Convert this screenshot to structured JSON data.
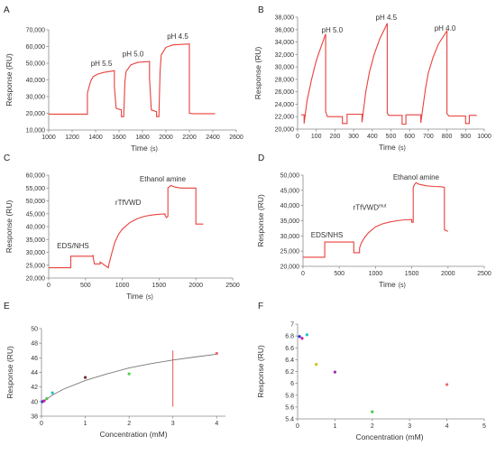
{
  "chart_data": [
    {
      "id": "A",
      "type": "line",
      "panel_label": "A",
      "xlabel": "Time",
      "xunit": "(s)",
      "ylabel": "Response (RU)",
      "xlim": [
        1000,
        2600
      ],
      "ylim": [
        10000,
        70000
      ],
      "xticks": [
        1000,
        1200,
        1400,
        1600,
        1800,
        2000,
        2200,
        2400,
        2600
      ],
      "yticks": [
        10000,
        20000,
        30000,
        40000,
        50000,
        60000,
        70000
      ],
      "xtick_labels": [
        "1000",
        "1200",
        "1400",
        "1600",
        "1800",
        "2000",
        "2200",
        "2400",
        "2600"
      ],
      "ytick_labels": [
        "10,000",
        "20,000",
        "30,000",
        "40,000",
        "50,000",
        "60,000",
        "70,000"
      ],
      "color": "#e8413c",
      "series": [
        {
          "x": [
            1000,
            1330,
            1330,
            1345,
            1360,
            1380,
            1420,
            1470,
            1560,
            1560,
            1575,
            1620,
            1620,
            1640,
            1650,
            1660,
            1700,
            1760,
            1860,
            1860,
            1875,
            1920,
            1920,
            1940,
            1950,
            1960,
            2000,
            2060,
            2200,
            2200,
            2230,
            2420
          ],
          "y": [
            19500,
            19500,
            32000,
            36000,
            39500,
            42000,
            43500,
            44500,
            45500,
            36000,
            23000,
            22000,
            18000,
            18000,
            39000,
            45000,
            49000,
            50500,
            51000,
            41000,
            22000,
            21000,
            18000,
            18000,
            45000,
            55000,
            59500,
            61000,
            61500,
            20000,
            19800,
            19800
          ]
        }
      ],
      "annotations": [
        {
          "text": "pH 5.5",
          "x": 1450,
          "y": 48500
        },
        {
          "text": "pH 5.0",
          "x": 1720,
          "y": 54000
        },
        {
          "text": "pH 4.5",
          "x": 2100,
          "y": 64500
        }
      ]
    },
    {
      "id": "B",
      "type": "line",
      "panel_label": "B",
      "xlabel": "Time",
      "xunit": "(s)",
      "ylabel": "Response (RU)",
      "xlim": [
        0,
        1000
      ],
      "ylim": [
        20000,
        38000
      ],
      "xticks": [
        0,
        100,
        200,
        300,
        400,
        500,
        600,
        700,
        800,
        900,
        1000
      ],
      "yticks": [
        20000,
        22000,
        24000,
        26000,
        28000,
        30000,
        32000,
        34000,
        36000,
        38000
      ],
      "xtick_labels": [
        "0",
        "100",
        "200",
        "300",
        "400",
        "500",
        "600",
        "700",
        "800",
        "900",
        "1000"
      ],
      "ytick_labels": [
        "20,000",
        "22,000",
        "24,000",
        "26,000",
        "28,000",
        "30,000",
        "32,000",
        "34,000",
        "36,000",
        "38,000"
      ],
      "color": "#e8413c",
      "series": [
        {
          "x": [
            20,
            35,
            35,
            50,
            75,
            100,
            125,
            150,
            150,
            160,
            240,
            240,
            265,
            265,
            345,
            345,
            365,
            385,
            410,
            440,
            480,
            480,
            490,
            560,
            560,
            580,
            580,
            660,
            660,
            685,
            700,
            725,
            755,
            800,
            800,
            810,
            900,
            900,
            920,
            920,
            960
          ],
          "y": [
            22300,
            22300,
            20900,
            24500,
            28000,
            31000,
            33200,
            35300,
            22800,
            22000,
            22000,
            20900,
            20900,
            22400,
            22400,
            21100,
            26000,
            29200,
            32000,
            34500,
            37000,
            22500,
            22200,
            22200,
            20800,
            20800,
            22300,
            22300,
            21000,
            26500,
            29000,
            31500,
            33700,
            35800,
            22500,
            22100,
            22100,
            20900,
            20900,
            22200,
            22200
          ]
        }
      ],
      "annotations": [
        {
          "text": "pH 5.0",
          "x": 185,
          "y": 35500
        },
        {
          "text": "pH 4.5",
          "x": 475,
          "y": 37600
        },
        {
          "text": "pH 4.0",
          "x": 790,
          "y": 35800
        }
      ]
    },
    {
      "id": "C",
      "type": "line",
      "panel_label": "C",
      "xlabel": "Time",
      "xunit": "(s)",
      "ylabel": "Response (RU)",
      "xlim": [
        0,
        2500
      ],
      "ylim": [
        20000,
        60000
      ],
      "xticks": [
        0,
        500,
        1000,
        1500,
        2000,
        2500
      ],
      "yticks": [
        20000,
        25000,
        30000,
        35000,
        40000,
        45000,
        50000,
        55000,
        60000
      ],
      "xtick_labels": [
        "0",
        "500",
        "1000",
        "1500",
        "2000",
        "2500"
      ],
      "ytick_labels": [
        "20,000",
        "25,000",
        "30,000",
        "35,000",
        "40,000",
        "45,000",
        "50,000",
        "55,000",
        "60,000"
      ],
      "color": "#e8413c",
      "series": [
        {
          "x": [
            0,
            300,
            300,
            600,
            600,
            620,
            700,
            700,
            810,
            820,
            860,
            900,
            950,
            1000,
            1100,
            1200,
            1300,
            1400,
            1500,
            1580,
            1580,
            1600,
            1620,
            1620,
            1660,
            1700,
            1750,
            1800,
            2000,
            2000,
            2100
          ],
          "y": [
            24000,
            24000,
            28500,
            28500,
            29000,
            25500,
            25500,
            26200,
            24000,
            25500,
            30000,
            34000,
            37000,
            39000,
            41500,
            43000,
            44000,
            44500,
            44800,
            44900,
            44500,
            43500,
            44000,
            55000,
            56000,
            55500,
            55200,
            55000,
            55000,
            41000,
            41000
          ]
        }
      ],
      "annotations": [
        {
          "text": "EDS/NHS",
          "x": 330,
          "y": 31500
        },
        {
          "text": "rTfVWD",
          "x": 1080,
          "y": 48500
        },
        {
          "text": "Ethanol amine",
          "x": 1550,
          "y": 57500
        }
      ]
    },
    {
      "id": "D",
      "type": "line",
      "panel_label": "D",
      "xlabel": "Time",
      "xunit": "(s)",
      "ylabel": "Response (RU)",
      "xlim": [
        0,
        2500
      ],
      "ylim": [
        20000,
        50000
      ],
      "xticks": [
        0,
        500,
        1000,
        1500,
        2000,
        2500
      ],
      "yticks": [
        20000,
        25000,
        30000,
        35000,
        40000,
        45000,
        50000
      ],
      "xtick_labels": [
        "0",
        "500",
        "1000",
        "1500",
        "2000",
        "2500"
      ],
      "ytick_labels": [
        "20,000",
        "25,000",
        "30,000",
        "35,000",
        "40,000",
        "45,000",
        "50,000"
      ],
      "color": "#e8413c",
      "series": [
        {
          "x": [
            0,
            300,
            300,
            700,
            700,
            780,
            780,
            800,
            850,
            900,
            1000,
            1100,
            1200,
            1300,
            1400,
            1500,
            1500,
            1520,
            1520,
            1540,
            1560,
            1600,
            1700,
            1800,
            1900,
            1950,
            1950,
            2000
          ],
          "y": [
            23000,
            23000,
            28000,
            28000,
            24500,
            24500,
            26000,
            27500,
            29500,
            31000,
            33000,
            34000,
            34600,
            35000,
            35300,
            35400,
            34500,
            34500,
            46000,
            47000,
            47500,
            47000,
            46500,
            46300,
            46200,
            46000,
            32000,
            31500
          ]
        }
      ],
      "annotations": [
        {
          "text": "EDS/NHS",
          "x": 330,
          "y": 29500
        },
        {
          "text": "rTfVWD",
          "sup": "mut",
          "x": 920,
          "y": 38500
        },
        {
          "text": "Ethanol amine",
          "x": 1560,
          "y": 48500
        }
      ]
    },
    {
      "id": "E",
      "type": "scatter",
      "panel_label": "E",
      "xlabel": "Concentration (mM)",
      "ylabel": "Response (RU)",
      "xlim": [
        0,
        4.2
      ],
      "ylim": [
        38,
        50
      ],
      "xticks": [
        0,
        1,
        2,
        3,
        4
      ],
      "yticks": [
        38,
        40,
        42,
        44,
        46,
        48,
        50
      ],
      "xtick_labels": [
        "0",
        "1",
        "2",
        "3",
        "4"
      ],
      "ytick_labels": [
        "38",
        "40",
        "42",
        "44",
        "46",
        "48",
        "50"
      ],
      "points": [
        {
          "x": 0.02,
          "y": 40.0,
          "color": "#1f3bd6"
        },
        {
          "x": 0.06,
          "y": 40.1,
          "color": "#d41ea3"
        },
        {
          "x": 0.12,
          "y": 40.4,
          "color": "#49c64a"
        },
        {
          "x": 0.25,
          "y": 41.2,
          "color": "#1fc1c1"
        },
        {
          "x": 1.0,
          "y": 43.3,
          "color": "#7a2c2c"
        },
        {
          "x": 2.0,
          "y": 43.8,
          "color": "#4ed14e"
        },
        {
          "x": 4.0,
          "y": 46.6,
          "color": "#e86a6a"
        }
      ],
      "fit_curve": {
        "x": [
          0,
          0.25,
          0.5,
          1.0,
          1.5,
          2.0,
          2.5,
          3.0,
          3.5,
          4.0
        ],
        "y": [
          39.8,
          40.9,
          41.7,
          42.9,
          43.8,
          44.6,
          45.2,
          45.7,
          46.1,
          46.5
        ],
        "color": "#777777"
      },
      "vline": {
        "x": 3.0,
        "y": [
          39.3,
          47.0
        ],
        "color": "#e8413c"
      }
    },
    {
      "id": "F",
      "type": "scatter",
      "panel_label": "F",
      "xlabel": "Concentration (mM)",
      "ylabel": "Response (RU)",
      "xlim": [
        0,
        5
      ],
      "ylim": [
        5.4,
        7.0
      ],
      "xticks": [
        0,
        1,
        2,
        3,
        4,
        5
      ],
      "yticks": [
        5.4,
        5.6,
        5.8,
        6.0,
        6.2,
        6.4,
        6.6,
        6.8,
        7.0
      ],
      "xtick_labels": [
        "0",
        "1",
        "2",
        "3",
        "4",
        "5"
      ],
      "ytick_labels": [
        "5.4",
        "5.6",
        "5.8",
        "6",
        "6.2",
        "6.4",
        "6.6",
        "6.8",
        "7"
      ],
      "points": [
        {
          "x": 0.05,
          "y": 6.79,
          "color": "#1f3bd6"
        },
        {
          "x": 0.12,
          "y": 6.76,
          "color": "#d41ea3"
        },
        {
          "x": 0.25,
          "y": 6.82,
          "color": "#1fc1c1"
        },
        {
          "x": 0.5,
          "y": 6.32,
          "color": "#c9c21e"
        },
        {
          "x": 1.0,
          "y": 6.19,
          "color": "#a02ab3"
        },
        {
          "x": 2.0,
          "y": 5.52,
          "color": "#49c64a"
        },
        {
          "x": 4.0,
          "y": 5.98,
          "color": "#e86a6a"
        }
      ]
    }
  ]
}
